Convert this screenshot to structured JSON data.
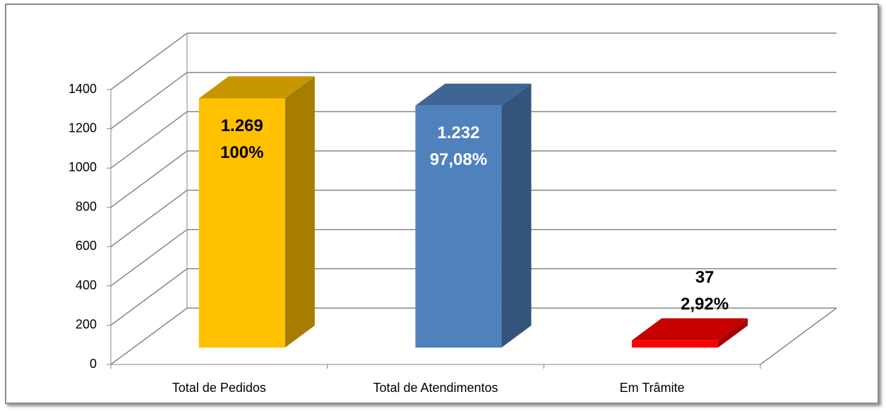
{
  "chart_data": {
    "type": "bar3d",
    "categories": [
      "Total de Pedidos",
      "Total de Atendimentos",
      "Em Trâmite"
    ],
    "values": [
      1269,
      1232,
      37
    ],
    "value_labels": [
      "1.269",
      "1.232",
      "37"
    ],
    "share_labels": [
      "100%",
      "97,08%",
      "2,92%"
    ],
    "colors": [
      "#ffc000",
      "#4f81bd",
      "#ff0000"
    ],
    "label_colors": [
      "#000000",
      "#ffffff",
      "#000000"
    ],
    "ylim": [
      0,
      1400
    ],
    "yticks": [
      0,
      200,
      400,
      600,
      800,
      1000,
      1200,
      1400
    ],
    "grid": true
  }
}
